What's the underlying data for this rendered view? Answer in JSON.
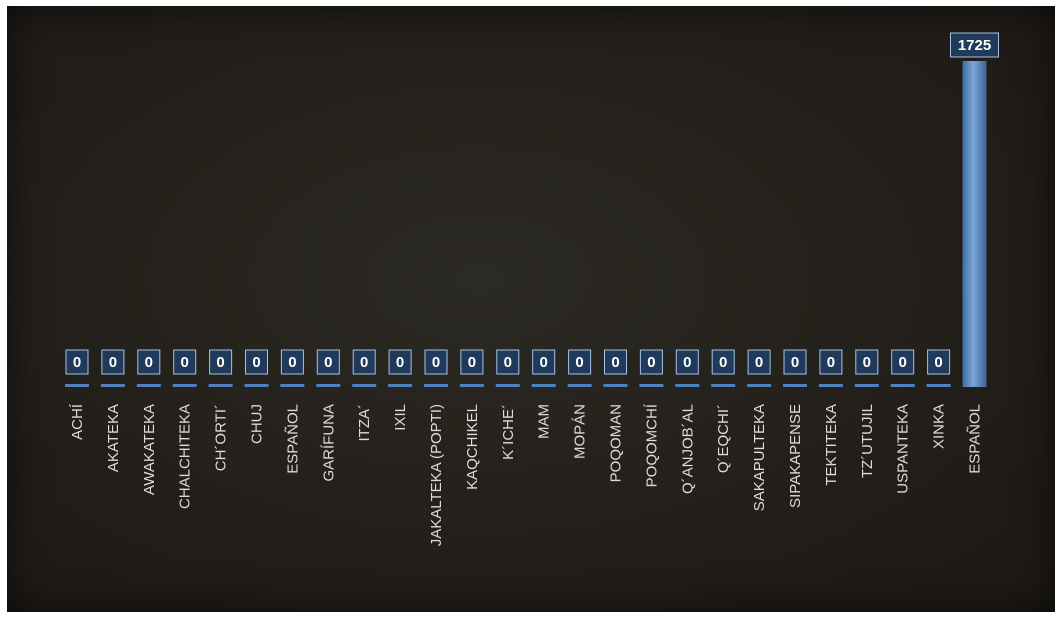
{
  "chart_data": {
    "type": "bar",
    "title": "",
    "xlabel": "",
    "ylabel": "",
    "categories": [
      "ACHÍ",
      "AKATEKA",
      "AWAKATEKA",
      "CHALCHITEKA",
      "CH´ORTI´",
      "CHUJ",
      "ESPAÑOL",
      "GARÍFUNA",
      "ITZA´",
      "IXIL",
      "JAKALTEKA (POPTI)",
      "KAQCHIKEL",
      "K´ICHE´",
      "MAM",
      "MOPÁN",
      "POQOMAN",
      "POQOMCHÍ",
      "Q´ANJOB´AL",
      "Q´EQCHI´",
      "SAKAPULTEKA",
      "SIPAKAPENSE",
      "TEKTITEKA",
      "TZ´UTUJIL",
      "USPANTEKA",
      "XINKA",
      "ESPAÑOL"
    ],
    "values": [
      0,
      0,
      0,
      0,
      0,
      0,
      0,
      0,
      0,
      0,
      0,
      0,
      0,
      0,
      0,
      0,
      0,
      0,
      0,
      0,
      0,
      0,
      0,
      0,
      0,
      1725
    ],
    "ylim": [
      0,
      1725
    ],
    "grid": false,
    "legend": "none",
    "colors": {
      "bar": "#4f81bd",
      "bar_highlight": "#7aa6d8",
      "label_box": "#1f3a5a",
      "label_border": "#a9c1dd"
    }
  }
}
